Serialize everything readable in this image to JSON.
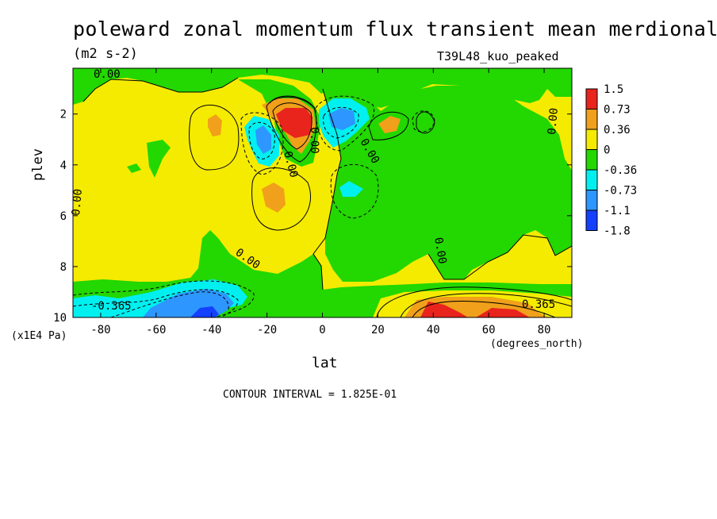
{
  "chart_data": {
    "type": "heatmap",
    "title": "poleward zonal momentum flux transient mean merdional",
    "units": "(m2 s-2)",
    "run_label": "T39L48_kuo_peaked",
    "xlabel": "lat",
    "x_units": "(degrees_north)",
    "ylabel": "plev",
    "y_units": "(x1E4 Pa)",
    "xlim": [
      -90,
      90
    ],
    "ylim": [
      0.2,
      10
    ],
    "y_inverted": true,
    "x_ticks": [
      "-80",
      "-60",
      "-40",
      "-20",
      "0",
      "20",
      "40",
      "60",
      "80"
    ],
    "x_tick_values": [
      -80,
      -60,
      -40,
      -20,
      0,
      20,
      40,
      60,
      80
    ],
    "y_ticks": [
      "2",
      "4",
      "6",
      "8",
      "10"
    ],
    "y_tick_values": [
      2,
      4,
      6,
      8,
      10
    ],
    "contour_interval": "CONTOUR INTERVAL = 1.825E-01",
    "contour_labels": [
      "0.00",
      "0.00",
      "0.00",
      "0.00",
      "0.00",
      "0.00",
      "0.00",
      "-0.365",
      "0.365"
    ],
    "colorbar": {
      "labels": [
        "1.5",
        "0.73",
        "0.36",
        "0",
        "-0.36",
        "-0.73",
        "-1.1",
        "-1.8"
      ],
      "colors": [
        "#e8241c",
        "#f0a01a",
        "#f5eb00",
        "#23d700",
        "#00f0f0",
        "#2d96ff",
        "#1440ff"
      ]
    }
  }
}
